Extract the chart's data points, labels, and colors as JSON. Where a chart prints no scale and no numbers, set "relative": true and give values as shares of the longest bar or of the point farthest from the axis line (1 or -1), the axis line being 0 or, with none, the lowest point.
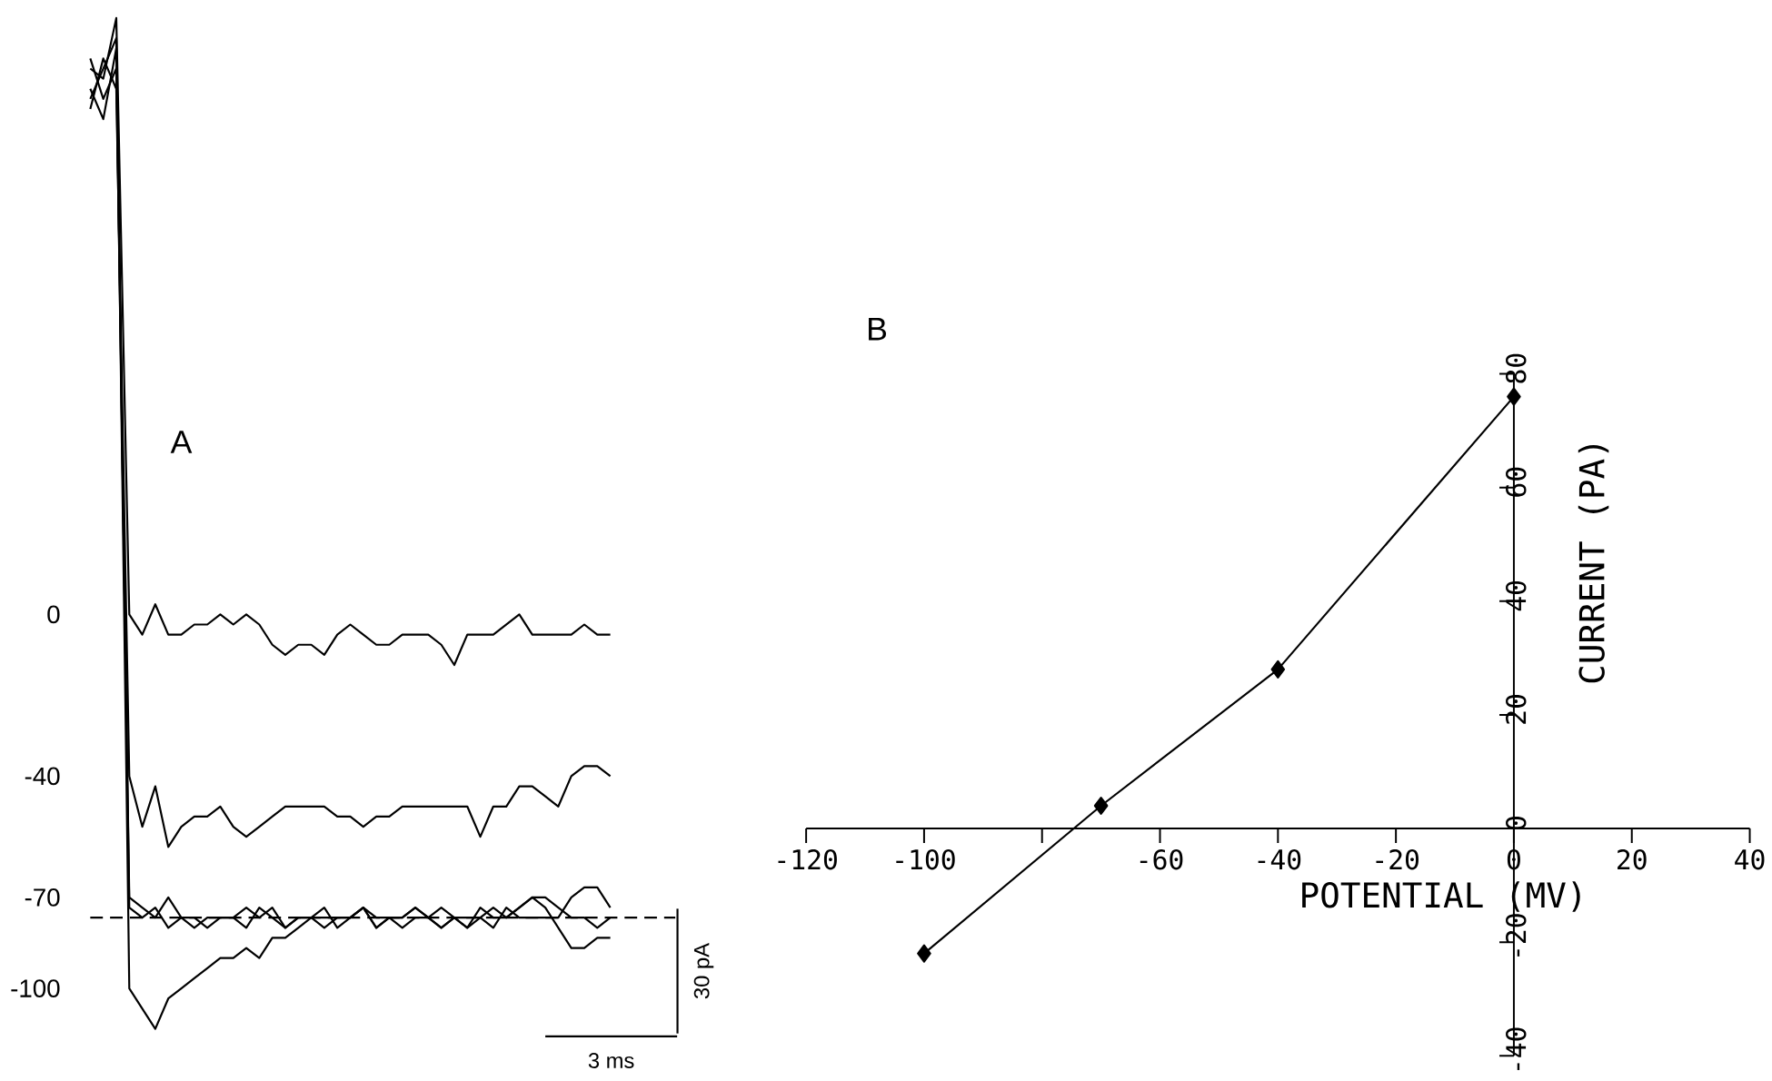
{
  "chart_data": [
    {
      "type": "line",
      "title": "A",
      "relative": true,
      "categories": [
        null,
        null,
        null,
        null,
        null,
        null,
        null,
        null,
        null,
        null,
        null,
        null,
        null,
        null,
        null,
        null,
        null,
        null,
        null,
        null,
        null,
        null,
        null,
        null,
        null,
        null,
        null,
        null,
        null,
        null,
        null,
        null,
        null,
        null,
        null,
        null,
        null,
        null,
        null,
        null,
        null
      ],
      "series": [
        {
          "name": "0",
          "color": "#000000",
          "values": [
            0.95,
            0.94,
            1.0,
            0.41,
            0.39,
            0.42,
            0.39,
            0.39,
            0.4,
            0.4,
            0.41,
            0.4,
            0.41,
            0.4,
            0.38,
            0.37,
            0.38,
            0.38,
            0.37,
            0.39,
            0.4,
            0.39,
            0.38,
            0.38,
            0.39,
            0.39,
            0.39,
            0.38,
            0.36,
            0.39,
            0.39,
            0.39,
            0.4,
            0.41,
            0.39,
            0.39,
            0.39,
            0.39,
            0.4,
            0.39,
            0.39
          ]
        },
        {
          "name": "-40",
          "color": "#000000",
          "values": [
            0.91,
            0.96,
            0.93,
            0.25,
            0.2,
            0.24,
            0.18,
            0.2,
            0.21,
            0.21,
            0.22,
            0.2,
            0.19,
            0.2,
            0.21,
            0.22,
            0.22,
            0.22,
            0.22,
            0.21,
            0.21,
            0.2,
            0.21,
            0.21,
            0.22,
            0.22,
            0.22,
            0.22,
            0.22,
            0.22,
            0.19,
            0.22,
            0.22,
            0.24,
            0.24,
            0.23,
            0.22,
            0.25,
            0.26,
            0.26,
            0.25
          ]
        },
        {
          "name": "-70",
          "color": "#000000",
          "values": [
            0.96,
            0.92,
            0.95,
            0.13,
            0.12,
            0.11,
            0.13,
            0.11,
            0.11,
            0.1,
            0.11,
            0.11,
            0.12,
            0.11,
            0.12,
            0.1,
            0.11,
            0.11,
            0.12,
            0.1,
            0.11,
            0.12,
            0.1,
            0.11,
            0.11,
            0.12,
            0.11,
            0.12,
            0.11,
            0.11,
            0.11,
            0.1,
            0.12,
            0.11,
            0.11,
            0.11,
            0.11,
            0.13,
            0.14,
            0.14,
            0.12
          ]
        },
        {
          "color": "#000000",
          "values": [
            0.93,
            0.9,
            0.97,
            0.12,
            0.11,
            0.12,
            0.1,
            0.11,
            0.1,
            0.11,
            0.11,
            0.11,
            0.1,
            0.12,
            0.11,
            0.1,
            0.11,
            0.11,
            0.1,
            0.11,
            0.11,
            0.12,
            0.1,
            0.11,
            0.1,
            0.11,
            0.11,
            0.1,
            0.11,
            0.1,
            0.12,
            0.11,
            0.11,
            0.12,
            0.13,
            0.12,
            0.1,
            0.08,
            0.08,
            0.09,
            0.09
          ]
        },
        {
          "name": "-100",
          "color": "#000000",
          "values": [
            0.92,
            0.95,
            0.98,
            0.04,
            0.02,
            0.0,
            0.03,
            0.04,
            0.05,
            0.06,
            0.07,
            0.07,
            0.08,
            0.07,
            0.09,
            0.09,
            0.1,
            0.11,
            0.11,
            0.11,
            0.11,
            0.12,
            0.11,
            0.11,
            0.11,
            0.12,
            0.11,
            0.1,
            0.11,
            0.1,
            0.11,
            0.12,
            0.11,
            0.12,
            0.13,
            0.13,
            0.12,
            0.11,
            0.11,
            0.1,
            0.11
          ]
        }
      ],
      "ref_lines": [
        {
          "axis": "y",
          "value": 0.11,
          "line_style": "dashed"
        }
      ],
      "annotations": [
        "30 pA",
        "3 ms"
      ]
    },
    {
      "type": "line",
      "title": "B",
      "xlabel": "POTENTIAL (MV)",
      "ylabel": "CURRENT (PA)",
      "x": [
        -100,
        -70,
        -40,
        0
      ],
      "series": [
        {
          "color": "#000000",
          "values": [
            -22,
            4,
            28,
            76
          ]
        }
      ],
      "xlim": [
        -120,
        40
      ],
      "ylim": [
        -40,
        80
      ],
      "xticks": [
        -120,
        -100,
        {
          "value": -80,
          "label": null
        },
        -60,
        -40,
        -20,
        0,
        20,
        40
      ],
      "yticks": [
        -40,
        -20,
        0,
        20,
        40,
        60,
        80
      ],
      "marker": "diamond"
    }
  ]
}
